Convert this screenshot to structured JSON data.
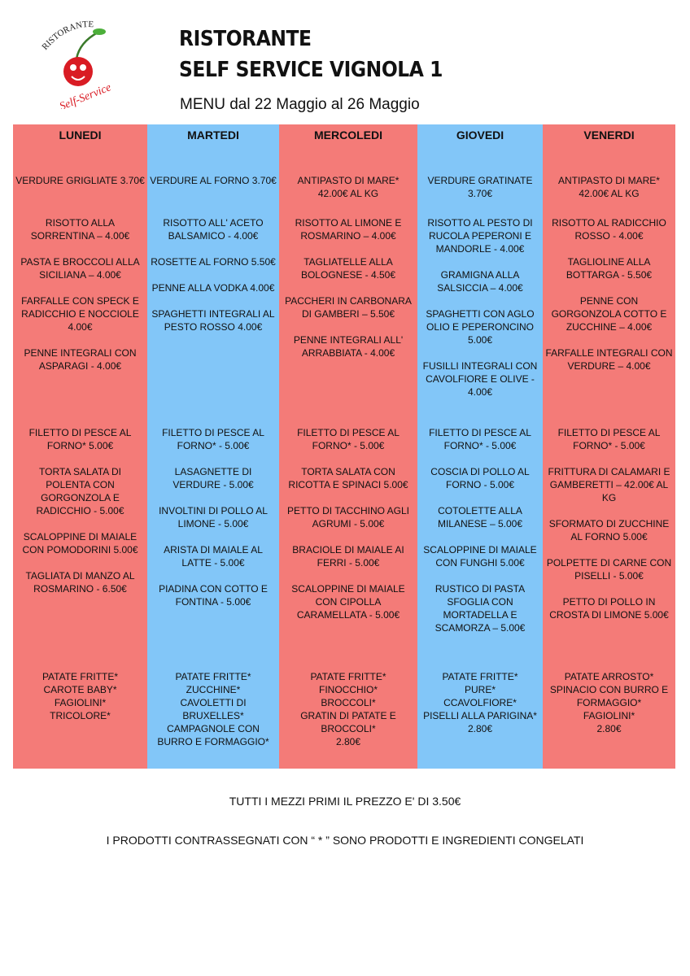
{
  "logo": {
    "top_text": "RISTORANTE",
    "bottom_text": "Self-Service"
  },
  "header": {
    "title_line1": "RISTORANTE",
    "title_line2": "SELF SERVICE VIGNOLA 1",
    "subtitle": "MENU dal 22 Maggio al 26 Maggio"
  },
  "table": {
    "days": [
      {
        "name": "LUNEDI",
        "antipasti": [
          "VERDURE GRIGLIATE 3.70€"
        ],
        "primi": [
          "RISOTTO ALLA SORRENTINA – 4.00€",
          "PASTA E BROCCOLI ALLA SICILIANA – 4.00€",
          "FARFALLE CON SPECK E RADICCHIO E NOCCIOLE 4.00€",
          "PENNE INTEGRALI CON ASPARAGI - 4.00€"
        ],
        "secondi": [
          "FILETTO DI PESCE AL FORNO* 5.00€",
          "TORTA SALATA DI POLENTA CON GORGONZOLA E RADICCHIO - 5.00€",
          "SCALOPPINE DI MAIALE CON POMODORINI 5.00€",
          "TAGLIATA DI MANZO AL ROSMARINO - 6.50€"
        ],
        "contorni": [
          "PATATE FRITTE*",
          "CAROTE BABY*",
          "FAGIOLINI*",
          "TRICOLORE*"
        ]
      },
      {
        "name": "MARTEDI",
        "antipasti": [
          "VERDURE AL FORNO 3.70€"
        ],
        "primi": [
          "RISOTTO ALL' ACETO BALSAMICO - 4.00€",
          "ROSETTE AL FORNO 5.50€",
          "PENNE ALLA VODKA 4.00€",
          "SPAGHETTI INTEGRALI AL PESTO ROSSO 4.00€"
        ],
        "secondi": [
          "FILETTO DI PESCE AL FORNO* - 5.00€",
          "LASAGNETTE DI VERDURE - 5.00€",
          "INVOLTINI DI POLLO AL LIMONE - 5.00€",
          "ARISTA DI MAIALE AL LATTE - 5.00€",
          "PIADINA CON COTTO E FONTINA - 5.00€"
        ],
        "contorni": [
          "PATATE FRITTE*",
          "ZUCCHINE*",
          "CAVOLETTI DI BRUXELLES*",
          "CAMPAGNOLE CON BURRO E FORMAGGIO*"
        ]
      },
      {
        "name": "MERCOLEDI",
        "antipasti": [
          "ANTIPASTO DI MARE* 42.00€ AL KG"
        ],
        "primi": [
          "RISOTTO AL LIMONE E ROSMARINO – 4.00€",
          "TAGLIATELLE ALLA BOLOGNESE - 4.50€",
          "PACCHERI IN CARBONARA DI GAMBERI – 5.50€",
          "PENNE INTEGRALI ALL' ARRABBIATA - 4.00€"
        ],
        "secondi": [
          "FILETTO DI PESCE AL FORNO* - 5.00€",
          "TORTA SALATA CON RICOTTA E SPINACI 5.00€",
          "PETTO DI TACCHINO AGLI AGRUMI - 5.00€",
          "BRACIOLE DI MAIALE AI FERRI - 5.00€",
          "SCALOPPINE DI MAIALE CON CIPOLLA CARAMELLATA - 5.00€"
        ],
        "contorni": [
          "PATATE FRITTE*",
          "FINOCCHIO*",
          "BROCCOLI*",
          "GRATIN DI PATATE E BROCCOLI*",
          "2.80€"
        ]
      },
      {
        "name": "GIOVEDI",
        "antipasti": [
          "VERDURE GRATINATE 3.70€"
        ],
        "primi": [
          "RISOTTO AL PESTO DI RUCOLA PEPERONI E MANDORLE - 4.00€",
          "GRAMIGNA ALLA SALSICCIA – 4.00€",
          "SPAGHETTI CON AGLO OLIO E PEPERONCINO 5.00€",
          "FUSILLI INTEGRALI CON CAVOLFIORE E OLIVE - 4.00€"
        ],
        "secondi": [
          "FILETTO DI PESCE AL FORNO* - 5.00€",
          "COSCIA DI POLLO AL FORNO - 5.00€",
          "COTOLETTE ALLA MILANESE – 5.00€",
          "SCALOPPINE DI MAIALE CON FUNGHI 5.00€",
          "RUSTICO DI PASTA SFOGLIA CON MORTADELLA E SCAMORZA – 5.00€"
        ],
        "contorni": [
          "PATATE FRITTE*",
          "PURE*",
          "CCAVOLFIORE*",
          "PISELLI ALLA PARIGINA*",
          "2.80€"
        ]
      },
      {
        "name": "VENERDI",
        "antipasti": [
          "ANTIPASTO DI MARE* 42.00€ AL KG"
        ],
        "primi": [
          "RISOTTO AL RADICCHIO ROSSO - 4.00€",
          "TAGLIOLINE ALLA BOTTARGA - 5.50€",
          "PENNE CON GORGONZOLA COTTO E ZUCCHINE – 4.00€",
          "FARFALLE INTEGRALI CON VERDURE – 4.00€"
        ],
        "secondi": [
          "FILETTO DI PESCE AL FORNO* - 5.00€",
          "FRITTURA DI CALAMARI E GAMBERETTI – 42.00€ AL KG",
          "SFORMATO DI ZUCCHINE AL FORNO 5.00€",
          "POLPETTE DI CARNE CON PISELLI - 5.00€",
          "PETTO DI POLLO IN CROSTA DI LIMONE 5.00€"
        ],
        "contorni": [
          "PATATE ARROSTO*",
          "SPINACIO CON BURRO E FORMAGGIO*",
          "FAGIOLINI*",
          "2.80€"
        ]
      }
    ]
  },
  "footer": {
    "note1": "TUTTI I MEZZI PRIMI IL PREZZO E' DI 3.50€",
    "note2": "I PRODOTTI CONTRASSEGNATI CON “ * ” SONO PRODOTTI E INGREDIENTI CONGELATI"
  }
}
